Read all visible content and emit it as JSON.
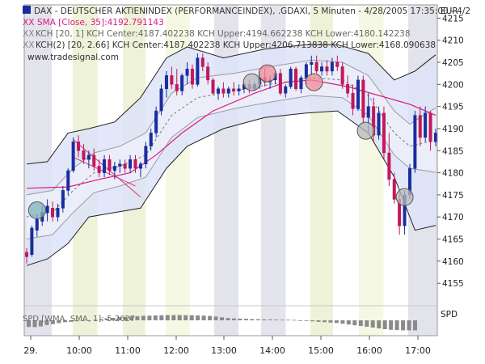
{
  "header": {
    "line1": "DAX - DEUTSCHER AKTIENINDEX (PERFORMANCEINDEX), .GDAXI, 5 Minuten - 4/28/2005 17:35:00 - 4/2",
    "line2_marker": "XX",
    "line2": "SMA [Close, 35]:4192.791143",
    "line3_marker": "XX",
    "line3": "KCH [20, 1] KCH Center:4187.402238 KCH Upper:4194.662238 KCH Lower:4180.142238",
    "line4_marker": "XX",
    "line4": "KCH(2) [20, 2.66] KCH Center:4187.402238 KCH Upper:4206.713838 KCH Lower:4168.090638",
    "watermark": "www.tradesignal.com"
  },
  "currency_label": "EUR",
  "indicator": {
    "label": "SPD [WMA, SMA, 1]:-5.2627",
    "axis_label": "SPD"
  },
  "colors": {
    "up_candle": "#1a2d9e",
    "down_candle": "#c2185b",
    "sma": "#e0197f",
    "band_fill_outer": "#dde3f8",
    "band_fill_inner": "#eceef8",
    "band_line": "#222222",
    "gray_band": "#e7e7ee",
    "yellow_band": "#f6f8e6",
    "circle_teal": "#7fb3b8",
    "circle_gray": "#b8b8b8",
    "circle_pink": "#f08a96",
    "trend_line": "#d8307a"
  },
  "chart_data": {
    "type": "candlestick",
    "title": "DAX - DEUTSCHER AKTIENINDEX (PERFORMANCEINDEX), .GDAXI, 5 Minuten",
    "y_unit": "EUR",
    "ylim": [
      4151,
      4218
    ],
    "y_ticks": [
      4155,
      4160,
      4165,
      4170,
      4175,
      4180,
      4185,
      4190,
      4195,
      4200,
      4205,
      4210,
      4215
    ],
    "x_ticks": [
      "29.",
      "10:00",
      "11:00",
      "12:00",
      "13:00",
      "14:00",
      "15:00",
      "16:00",
      "17:00"
    ],
    "candles": [
      {
        "o": 4162,
        "h": 4163,
        "l": 4159.5,
        "c": 4161
      },
      {
        "o": 4161.5,
        "h": 4168,
        "l": 4161,
        "c": 4167.5
      },
      {
        "o": 4167,
        "h": 4170.5,
        "l": 4165.5,
        "c": 4169.5
      },
      {
        "o": 4169,
        "h": 4172.5,
        "l": 4168,
        "c": 4171
      },
      {
        "o": 4171,
        "h": 4174,
        "l": 4169,
        "c": 4172.5
      },
      {
        "o": 4172,
        "h": 4173.5,
        "l": 4169,
        "c": 4170
      },
      {
        "o": 4170,
        "h": 4173,
        "l": 4169,
        "c": 4172
      },
      {
        "o": 4172,
        "h": 4177,
        "l": 4171,
        "c": 4176
      },
      {
        "o": 4176,
        "h": 4181,
        "l": 4175,
        "c": 4180.5
      },
      {
        "o": 4180.5,
        "h": 4188,
        "l": 4180,
        "c": 4187
      },
      {
        "o": 4187,
        "h": 4188.5,
        "l": 4183.5,
        "c": 4185
      },
      {
        "o": 4185,
        "h": 4186.5,
        "l": 4182,
        "c": 4183
      },
      {
        "o": 4183,
        "h": 4185,
        "l": 4181,
        "c": 4184
      },
      {
        "o": 4184,
        "h": 4185.5,
        "l": 4180.5,
        "c": 4181.5
      },
      {
        "o": 4181.5,
        "h": 4183,
        "l": 4179,
        "c": 4180
      },
      {
        "o": 4180,
        "h": 4184,
        "l": 4179,
        "c": 4183
      },
      {
        "o": 4183,
        "h": 4184,
        "l": 4179.5,
        "c": 4180.5
      },
      {
        "o": 4180.5,
        "h": 4182.5,
        "l": 4178.5,
        "c": 4181.5
      },
      {
        "o": 4181.5,
        "h": 4183,
        "l": 4180,
        "c": 4182
      },
      {
        "o": 4182,
        "h": 4183,
        "l": 4180,
        "c": 4181
      },
      {
        "o": 4181,
        "h": 4184,
        "l": 4180,
        "c": 4183
      },
      {
        "o": 4183,
        "h": 4184,
        "l": 4180,
        "c": 4181
      },
      {
        "o": 4181,
        "h": 4182.5,
        "l": 4179,
        "c": 4182
      },
      {
        "o": 4182,
        "h": 4187,
        "l": 4181,
        "c": 4186
      },
      {
        "o": 4186,
        "h": 4190,
        "l": 4185,
        "c": 4189
      },
      {
        "o": 4189,
        "h": 4195,
        "l": 4188,
        "c": 4194
      },
      {
        "o": 4194,
        "h": 4200,
        "l": 4193,
        "c": 4199
      },
      {
        "o": 4199,
        "h": 4203,
        "l": 4197,
        "c": 4202
      },
      {
        "o": 4202,
        "h": 4204,
        "l": 4199,
        "c": 4200
      },
      {
        "o": 4200,
        "h": 4203.5,
        "l": 4197.5,
        "c": 4198.5
      },
      {
        "o": 4198.5,
        "h": 4202.5,
        "l": 4197.5,
        "c": 4202
      },
      {
        "o": 4202,
        "h": 4205,
        "l": 4200,
        "c": 4203.5
      },
      {
        "o": 4203.5,
        "h": 4204.5,
        "l": 4199,
        "c": 4200
      },
      {
        "o": 4200,
        "h": 4207,
        "l": 4199.5,
        "c": 4206
      },
      {
        "o": 4206,
        "h": 4207,
        "l": 4203,
        "c": 4204
      },
      {
        "o": 4204,
        "h": 4205,
        "l": 4200,
        "c": 4201
      },
      {
        "o": 4201,
        "h": 4201.5,
        "l": 4197.5,
        "c": 4198
      },
      {
        "o": 4198,
        "h": 4199.5,
        "l": 4196.5,
        "c": 4199
      },
      {
        "o": 4199,
        "h": 4200.5,
        "l": 4197,
        "c": 4198
      },
      {
        "o": 4198,
        "h": 4199.5,
        "l": 4197,
        "c": 4199
      },
      {
        "o": 4199,
        "h": 4200.5,
        "l": 4197.5,
        "c": 4198.5
      },
      {
        "o": 4198.5,
        "h": 4200,
        "l": 4197.5,
        "c": 4199
      },
      {
        "o": 4199,
        "h": 4200.5,
        "l": 4198,
        "c": 4200
      },
      {
        "o": 4200,
        "h": 4201,
        "l": 4198,
        "c": 4199
      },
      {
        "o": 4199,
        "h": 4200.5,
        "l": 4198.5,
        "c": 4200
      },
      {
        "o": 4200,
        "h": 4202.5,
        "l": 4199,
        "c": 4201.5
      },
      {
        "o": 4201.5,
        "h": 4203.5,
        "l": 4199.5,
        "c": 4200.5
      },
      {
        "o": 4200.5,
        "h": 4202,
        "l": 4199,
        "c": 4201
      },
      {
        "o": 4201,
        "h": 4203,
        "l": 4200,
        "c": 4202.5
      },
      {
        "o": 4202.5,
        "h": 4203.5,
        "l": 4197.5,
        "c": 4198
      },
      {
        "o": 4198,
        "h": 4200,
        "l": 4197,
        "c": 4199.5
      },
      {
        "o": 4199.5,
        "h": 4204,
        "l": 4199,
        "c": 4203.5
      },
      {
        "o": 4203.5,
        "h": 4204,
        "l": 4198.5,
        "c": 4199
      },
      {
        "o": 4199,
        "h": 4202,
        "l": 4198,
        "c": 4201.5
      },
      {
        "o": 4201.5,
        "h": 4205,
        "l": 4200,
        "c": 4204.5
      },
      {
        "o": 4204.5,
        "h": 4206.5,
        "l": 4202,
        "c": 4205
      },
      {
        "o": 4205,
        "h": 4206.5,
        "l": 4202.5,
        "c": 4203
      },
      {
        "o": 4203,
        "h": 4205,
        "l": 4202,
        "c": 4204
      },
      {
        "o": 4204,
        "h": 4205.5,
        "l": 4202,
        "c": 4203
      },
      {
        "o": 4203,
        "h": 4206,
        "l": 4202,
        "c": 4205
      },
      {
        "o": 4205,
        "h": 4206.5,
        "l": 4203,
        "c": 4204
      },
      {
        "o": 4204,
        "h": 4205,
        "l": 4199,
        "c": 4200
      },
      {
        "o": 4200,
        "h": 4202,
        "l": 4197,
        "c": 4198
      },
      {
        "o": 4198,
        "h": 4200,
        "l": 4193,
        "c": 4194.5
      },
      {
        "o": 4194.5,
        "h": 4202,
        "l": 4194,
        "c": 4201
      },
      {
        "o": 4201,
        "h": 4202,
        "l": 4191,
        "c": 4192.5
      },
      {
        "o": 4192.5,
        "h": 4198,
        "l": 4189,
        "c": 4195
      },
      {
        "o": 4195,
        "h": 4197,
        "l": 4187,
        "c": 4188.5
      },
      {
        "o": 4188.5,
        "h": 4195,
        "l": 4187.5,
        "c": 4193.5
      },
      {
        "o": 4193.5,
        "h": 4195,
        "l": 4183,
        "c": 4184.5
      },
      {
        "o": 4184.5,
        "h": 4189,
        "l": 4177,
        "c": 4178.5
      },
      {
        "o": 4178.5,
        "h": 4180,
        "l": 4173,
        "c": 4174
      },
      {
        "o": 4174,
        "h": 4176,
        "l": 4166,
        "c": 4168
      },
      {
        "o": 4168,
        "h": 4176,
        "l": 4166,
        "c": 4175
      },
      {
        "o": 4175,
        "h": 4182,
        "l": 4174,
        "c": 4181
      },
      {
        "o": 4181,
        "h": 4194,
        "l": 4180,
        "c": 4193
      },
      {
        "o": 4193,
        "h": 4195,
        "l": 4186,
        "c": 4188
      },
      {
        "o": 4188,
        "h": 4195,
        "l": 4187,
        "c": 4193.5
      },
      {
        "o": 4193.5,
        "h": 4194,
        "l": 4185,
        "c": 4187
      },
      {
        "o": 4187,
        "h": 4190,
        "l": 4186,
        "c": 4189
      }
    ],
    "sma_35": [
      [
        0,
        4176.5
      ],
      [
        8,
        4176.8
      ],
      [
        14,
        4178.5
      ],
      [
        20,
        4180
      ],
      [
        25,
        4184
      ],
      [
        30,
        4189
      ],
      [
        36,
        4194
      ],
      [
        44,
        4198
      ],
      [
        50,
        4200.5
      ],
      [
        55,
        4201
      ],
      [
        62,
        4199.5
      ],
      [
        68,
        4197.5
      ],
      [
        74,
        4195.5
      ],
      [
        79,
        4193
      ]
    ],
    "kch_center": [
      [
        0,
        4170
      ],
      [
        5,
        4171
      ],
      [
        9,
        4176
      ],
      [
        13,
        4180
      ],
      [
        18,
        4181.5
      ],
      [
        23,
        4184
      ],
      [
        28,
        4193
      ],
      [
        33,
        4197
      ],
      [
        40,
        4198.5
      ],
      [
        47,
        4200
      ],
      [
        55,
        4201.5
      ],
      [
        61,
        4201
      ],
      [
        66,
        4197.5
      ],
      [
        71,
        4189
      ],
      [
        74,
        4186
      ],
      [
        79,
        4187.4
      ]
    ],
    "kch_upper_2": [
      [
        0,
        4182
      ],
      [
        4,
        4182.5
      ],
      [
        8,
        4189
      ],
      [
        12,
        4190
      ],
      [
        17,
        4191.5
      ],
      [
        22,
        4197
      ],
      [
        27,
        4206
      ],
      [
        31,
        4208.5
      ],
      [
        38,
        4206
      ],
      [
        46,
        4208
      ],
      [
        54,
        4209
      ],
      [
        60,
        4209
      ],
      [
        66,
        4207
      ],
      [
        71,
        4201
      ],
      [
        75,
        4203
      ],
      [
        79,
        4206.7
      ]
    ],
    "kch_lower_2": [
      [
        0,
        4159
      ],
      [
        4,
        4160.5
      ],
      [
        8,
        4164
      ],
      [
        12,
        4170
      ],
      [
        17,
        4171
      ],
      [
        22,
        4172
      ],
      [
        27,
        4181
      ],
      [
        31,
        4186
      ],
      [
        38,
        4190
      ],
      [
        46,
        4192.5
      ],
      [
        54,
        4193.5
      ],
      [
        60,
        4194
      ],
      [
        66,
        4189
      ],
      [
        71,
        4179
      ],
      [
        75,
        4167
      ],
      [
        79,
        4168.1
      ]
    ],
    "kch_upper_1": [
      [
        0,
        4175
      ],
      [
        5,
        4176
      ],
      [
        9,
        4181
      ],
      [
        13,
        4184.5
      ],
      [
        18,
        4186
      ],
      [
        23,
        4189
      ],
      [
        28,
        4198
      ],
      [
        33,
        4201.5
      ],
      [
        40,
        4202.5
      ],
      [
        47,
        4204
      ],
      [
        55,
        4205.5
      ],
      [
        61,
        4205
      ],
      [
        66,
        4202
      ],
      [
        71,
        4194
      ],
      [
        74,
        4191
      ],
      [
        79,
        4194.7
      ]
    ],
    "kch_lower_1": [
      [
        0,
        4165
      ],
      [
        5,
        4166
      ],
      [
        9,
        4171
      ],
      [
        13,
        4175.5
      ],
      [
        18,
        4177
      ],
      [
        23,
        4179
      ],
      [
        28,
        4188
      ],
      [
        33,
        4192.5
      ],
      [
        40,
        4194.5
      ],
      [
        47,
        4196
      ],
      [
        55,
        4197.5
      ],
      [
        61,
        4197
      ],
      [
        66,
        4193
      ],
      [
        71,
        4184
      ],
      [
        74,
        4181
      ],
      [
        79,
        4180.1
      ]
    ],
    "trend_lines": [
      {
        "x0": 9,
        "y0": 4187.5,
        "x1": 22,
        "y1": 4174.5
      },
      {
        "x0": 9,
        "y0": 4183.5,
        "x1": 21,
        "y1": 4177
      }
    ],
    "markers": [
      {
        "x": 2,
        "y": 4171.5,
        "color": "teal"
      },
      {
        "x": 43.5,
        "y": 4200.5,
        "color": "gray"
      },
      {
        "x": 46.5,
        "y": 4202.5,
        "color": "pink"
      },
      {
        "x": 55.5,
        "y": 4200.5,
        "color": "pink"
      },
      {
        "x": 65.5,
        "y": 4189.5,
        "color": "gray"
      },
      {
        "x": 73,
        "y": 4174.5,
        "color": "gray"
      }
    ],
    "spd_values": [
      -3.5,
      -3.6,
      -3.2,
      -2.5,
      -2,
      -1.5,
      -1,
      -0.8,
      -0.5,
      -0.3,
      0,
      0.3,
      0.6,
      1,
      1.3,
      1.6,
      1.8,
      2,
      2.2,
      2.4,
      2.5,
      2.6,
      2.7,
      2.8,
      2.8,
      2.8,
      2.7,
      2.7,
      2.6,
      2.5,
      2.3,
      2,
      1.6,
      1.2,
      1,
      0.9,
      0.8,
      0.7,
      0.6,
      0.5,
      0.5,
      0.4,
      0.3,
      0.3,
      0.2,
      0,
      -0.3,
      -0.5,
      -0.8,
      -1,
      -1.2,
      -1.4,
      -1.8,
      -2.2,
      -2.6,
      -3,
      -3.4,
      -3.8,
      -4.3,
      -4.7,
      -5,
      -5.2,
      -5.3,
      -5.3,
      -5.3
    ]
  }
}
